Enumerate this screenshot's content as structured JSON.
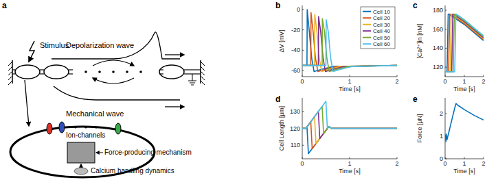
{
  "diagram": {
    "label": "a",
    "stimulus": "Stimulus",
    "depolarization_wave": "Depolarization wave",
    "mechanical_wave": "Mechanical wave",
    "ion_channels": "Ion-channels",
    "force_mechanism": "Force-producing mechanism",
    "calcium_handling": "Calcium handling dynamics"
  },
  "chart_data": [
    {
      "type": "line",
      "title": "b",
      "xlabel": "Time [s]",
      "ylabel": "ΔV [mV]",
      "xlim": [
        0,
        2
      ],
      "ylim": [
        -66,
        4
      ],
      "xticks": [
        0,
        1,
        2
      ],
      "yticks": [
        -60,
        -40,
        -20,
        0
      ],
      "legend": "northeast",
      "series": [
        {
          "name": "Cell 10",
          "color": "#0072BD",
          "x": [
            0,
            0.1,
            0.105,
            0.15,
            0.2,
            0.25,
            0.4,
            0.65,
            2
          ],
          "values": [
            -55,
            -55,
            0,
            -22,
            -48,
            -61,
            -59,
            -56,
            -55
          ]
        },
        {
          "name": "Cell 20",
          "color": "#D95319",
          "x": [
            0,
            0.18,
            0.185,
            0.23,
            0.28,
            0.33,
            0.48,
            0.73,
            2
          ],
          "values": [
            -55,
            -55,
            -3,
            -22,
            -48,
            -61,
            -59,
            -56,
            -55
          ]
        },
        {
          "name": "Cell 30",
          "color": "#EDB120",
          "x": [
            0,
            0.26,
            0.265,
            0.31,
            0.36,
            0.41,
            0.56,
            0.81,
            2
          ],
          "values": [
            -55,
            -55,
            -5,
            -22,
            -48,
            -61,
            -59,
            -56,
            -55
          ]
        },
        {
          "name": "Cell 40",
          "color": "#7E2F8E",
          "x": [
            0,
            0.34,
            0.345,
            0.39,
            0.44,
            0.49,
            0.64,
            0.89,
            2
          ],
          "values": [
            -55,
            -55,
            -7,
            -22,
            -48,
            -61,
            -59,
            -56,
            -55
          ]
        },
        {
          "name": "Cell 50",
          "color": "#77AC30",
          "x": [
            0,
            0.42,
            0.425,
            0.47,
            0.52,
            0.57,
            0.72,
            0.97,
            2
          ],
          "values": [
            -55,
            -55,
            -9,
            -22,
            -48,
            -61,
            -59,
            -56,
            -55
          ]
        },
        {
          "name": "Cell 60",
          "color": "#4DBEEE",
          "x": [
            0,
            0.5,
            0.505,
            0.55,
            0.6,
            0.65,
            0.8,
            1.05,
            2
          ],
          "values": [
            -55,
            -55,
            -10,
            -22,
            -48,
            -61,
            -59,
            -56,
            -55
          ]
        }
      ]
    },
    {
      "type": "line",
      "title": "c",
      "xlabel": "Time [s]",
      "ylabel": "[Ca²⁺]in [nM]",
      "xlim": [
        0,
        2
      ],
      "ylim": [
        110,
        185
      ],
      "xticks": [
        0,
        1,
        2
      ],
      "yticks": [
        120,
        140,
        160,
        180
      ],
      "series": [
        {
          "color": "#0072BD",
          "x": [
            0,
            0.1,
            0.16,
            0.25,
            1,
            2
          ],
          "values": [
            115,
            115,
            176,
            175,
            165,
            148
          ]
        },
        {
          "color": "#D95319",
          "x": [
            0,
            0.18,
            0.24,
            0.33,
            1,
            2
          ],
          "values": [
            115,
            115,
            176,
            175,
            166,
            149
          ]
        },
        {
          "color": "#EDB120",
          "x": [
            0,
            0.26,
            0.32,
            0.41,
            1,
            2
          ],
          "values": [
            115,
            115,
            176,
            175,
            167,
            150
          ]
        },
        {
          "color": "#7E2F8E",
          "x": [
            0,
            0.34,
            0.4,
            0.49,
            1,
            2
          ],
          "values": [
            115,
            115,
            176,
            175,
            168,
            151
          ]
        },
        {
          "color": "#77AC30",
          "x": [
            0,
            0.42,
            0.48,
            0.57,
            1,
            2
          ],
          "values": [
            115,
            115,
            176,
            175,
            169,
            152
          ]
        },
        {
          "color": "#4DBEEE",
          "x": [
            0,
            0.5,
            0.56,
            0.65,
            1,
            2
          ],
          "values": [
            115,
            115,
            176,
            175,
            170,
            153
          ]
        }
      ]
    },
    {
      "type": "line",
      "title": "d",
      "xlabel": "Time [s]",
      "ylabel": "Cell Length [µm]",
      "xlim": [
        0,
        2
      ],
      "ylim": [
        102,
        138
      ],
      "xticks": [
        0,
        1,
        2
      ],
      "yticks": [
        110,
        120,
        130
      ],
      "series": [
        {
          "color": "#0072BD",
          "x": [
            0,
            0.08,
            0.1,
            0.13,
            0.56,
            0.62,
            2
          ],
          "values": [
            120,
            120,
            121,
            105,
            121,
            120,
            120
          ]
        },
        {
          "color": "#D95319",
          "x": [
            0,
            0.08,
            0.18,
            0.21,
            0.56,
            0.62,
            2
          ],
          "values": [
            120,
            120,
            124,
            108,
            121,
            120,
            120
          ]
        },
        {
          "color": "#EDB120",
          "x": [
            0,
            0.08,
            0.26,
            0.29,
            0.56,
            0.62,
            2
          ],
          "values": [
            120,
            120,
            127,
            111,
            121,
            120,
            120
          ]
        },
        {
          "color": "#7E2F8E",
          "x": [
            0,
            0.08,
            0.34,
            0.37,
            0.56,
            0.62,
            2
          ],
          "values": [
            120,
            120,
            130,
            114,
            121,
            120,
            120
          ]
        },
        {
          "color": "#77AC30",
          "x": [
            0,
            0.08,
            0.42,
            0.45,
            0.56,
            0.62,
            2
          ],
          "values": [
            120,
            120,
            133,
            117,
            121,
            120,
            120
          ]
        },
        {
          "color": "#4DBEEE",
          "x": [
            0,
            0.08,
            0.5,
            0.53,
            0.56,
            0.62,
            2
          ],
          "values": [
            120,
            120,
            136,
            120,
            121,
            120,
            120
          ]
        }
      ]
    },
    {
      "type": "line",
      "title": "e",
      "xlabel": "Time [s]",
      "ylabel": "Force [µN]",
      "xlim": [
        0,
        2
      ],
      "ylim": [
        0,
        2.7
      ],
      "xticks": [
        0,
        1,
        2
      ],
      "yticks": [
        0,
        1,
        2
      ],
      "series": [
        {
          "color": "#0072BD",
          "x": [
            0,
            0.02,
            0.04,
            0.06,
            0.1,
            0.2,
            0.3,
            0.4,
            0.5,
            0.57,
            0.7,
            1,
            1.5,
            2
          ],
          "values": [
            1.0,
            1.05,
            0.75,
            1.1,
            0.85,
            1.2,
            1.55,
            1.9,
            2.25,
            2.45,
            2.35,
            2.18,
            1.93,
            1.72
          ]
        }
      ]
    }
  ]
}
